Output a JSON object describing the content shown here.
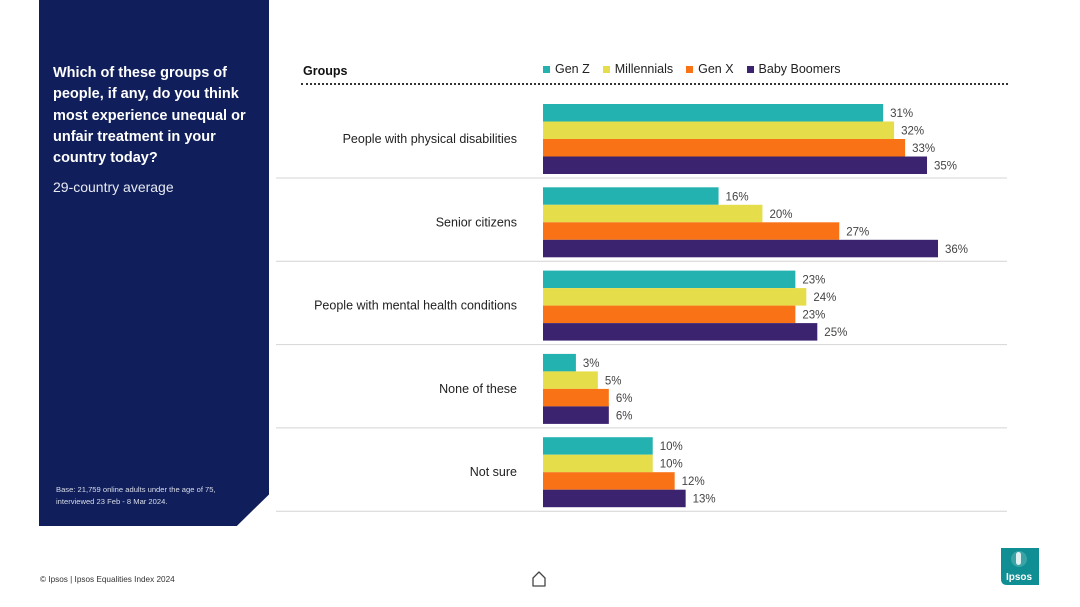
{
  "side_panel": {
    "question": "Which of these groups of people, if any, do you think most experience unequal or unfair treatment in your country today?",
    "subtitle": "29-country average",
    "base_note": "Base: 21,759 online adults under the age of 75, interviewed 23 Feb - 8 Mar 2024."
  },
  "chart_header": {
    "groups_label": "Groups"
  },
  "colors": {
    "panel": "#101f5b",
    "gen_z": "#24b2b0",
    "millennials": "#e6dd4a",
    "gen_x": "#f97316",
    "boomers": "#3c2370"
  },
  "chart_data": {
    "type": "bar",
    "orientation": "horizontal",
    "categories": [
      "People with physical disabilities",
      "Senior citizens",
      "People with mental health conditions",
      "None of these",
      "Not sure"
    ],
    "series": [
      {
        "name": "Gen Z",
        "color": "#24b2b0",
        "values": [
          31,
          16,
          23,
          3,
          10
        ]
      },
      {
        "name": "Millennials",
        "color": "#e6dd4a",
        "values": [
          32,
          20,
          24,
          5,
          10
        ]
      },
      {
        "name": "Gen X",
        "color": "#f97316",
        "values": [
          33,
          27,
          23,
          6,
          12
        ]
      },
      {
        "name": "Baby Boomers",
        "color": "#3c2370",
        "values": [
          35,
          36,
          25,
          6,
          13
        ]
      }
    ],
    "value_suffix": "%",
    "xlim": [
      0,
      36
    ],
    "legend_position": "top"
  },
  "footer": {
    "copyright": "© Ipsos | Ipsos Equalities Index 2024",
    "logo_text": "Ipsos"
  }
}
